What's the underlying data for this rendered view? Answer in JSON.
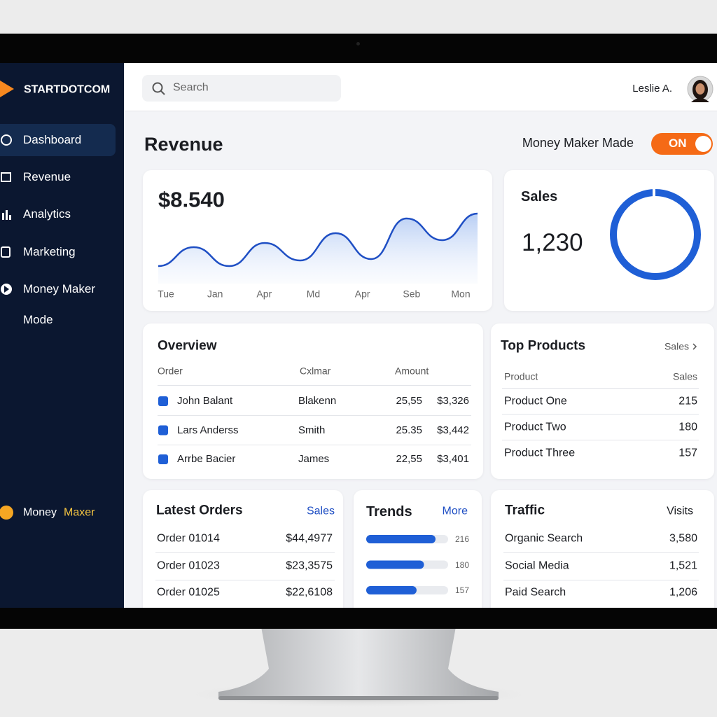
{
  "sidebar": {
    "brand": "STARTDOTCOM",
    "nav": [
      "Dashboard",
      "Revenue",
      "Analytics",
      "Marketing",
      "Money Maker Mode"
    ],
    "footer": [
      "Money",
      "Maxer"
    ]
  },
  "header": {
    "search_placeholder": "Search",
    "user": "Leslie A."
  },
  "page": {
    "title": "Revenue",
    "mode_label": "Money Maker Made",
    "toggle": "ON"
  },
  "revenue": {
    "amount": "$8.540",
    "labels": [
      "Tue",
      "Jan",
      "Apr",
      "Md",
      "Apr",
      "Seb",
      "Mon"
    ],
    "points": [
      20,
      47,
      20,
      53,
      28,
      67,
      30,
      88,
      57,
      95
    ],
    "ylim": [
      0,
      100
    ]
  },
  "sales": {
    "title": "Sales",
    "value": "1,230"
  },
  "overview": {
    "title": "Overview",
    "columns": [
      "Order",
      "Cxlmar",
      "Amount"
    ],
    "rows": [
      [
        "John Balant",
        "Blakenn",
        "25,55",
        "$3,326"
      ],
      [
        "Lars Anderss",
        "Smith",
        "25.35",
        "$3,442"
      ],
      [
        "Arrbe Bacier",
        "James",
        "22,55",
        "$3,401"
      ]
    ]
  },
  "top_products": {
    "title": "Top Products",
    "link": "Sales",
    "columns": [
      "Product",
      "Sales"
    ],
    "rows": [
      [
        "Product One",
        "215"
      ],
      [
        "Product Two",
        "180"
      ],
      [
        "Product Three",
        "157"
      ]
    ]
  },
  "latest_orders": {
    "title": "Latest Orders",
    "link": "Sales",
    "rows": [
      [
        "Order 01014",
        "$44,4977"
      ],
      [
        "Order 01023",
        "$23,3575"
      ],
      [
        "Order 01025",
        "$22,6108"
      ]
    ]
  },
  "trends": {
    "title": "Trends",
    "link": "More",
    "values": [
      216,
      180,
      157
    ]
  },
  "traffic": {
    "title": "Traffic",
    "column": "Visits",
    "rows": [
      [
        "Organic Search",
        "3,580"
      ],
      [
        "Social Media",
        "1,521"
      ],
      [
        "Paid Search",
        "1,206"
      ]
    ]
  }
}
